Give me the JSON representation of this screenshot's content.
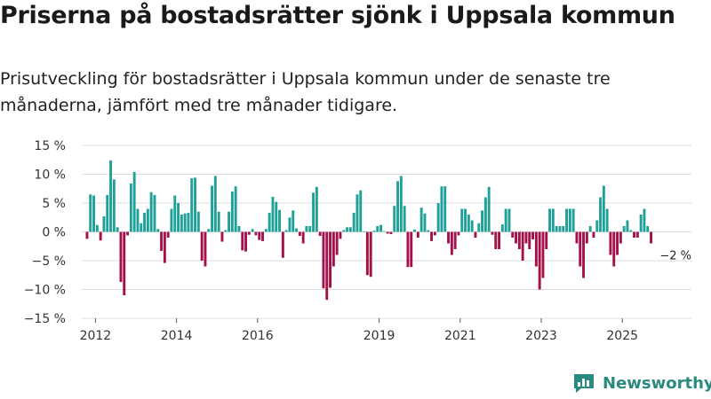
{
  "header": {
    "title": "Priserna på bostadsrätter sjönk i Uppsala kommun",
    "subtitle": "Prisutveckling för bostadsrätter i Uppsala kommun under de senaste tre månaderna, jämfört med tre månader tidigare."
  },
  "brand": {
    "name": "Newsworthy",
    "icon": "newsworthy-logo-icon",
    "color": "#2a8a80"
  },
  "colors": {
    "positive": "#1fa198",
    "negative": "#a3104a",
    "grid": "#dddddd"
  },
  "chart_data": {
    "type": "bar",
    "title": "Prisutveckling för bostadsrätter i Uppsala kommun",
    "xlabel": "",
    "ylabel": "",
    "ylim": [
      -15,
      15
    ],
    "y_ticks": [
      15,
      10,
      5,
      0,
      -5,
      -10,
      -15
    ],
    "y_tick_labels": [
      "15 %",
      "10 %",
      "5 %",
      "0 %",
      "−5 %",
      "−10 %",
      "−15 %"
    ],
    "x_tick_years": [
      2012,
      2014,
      2016,
      2019,
      2021,
      2023,
      2025
    ],
    "x_tick_labels": [
      "2012",
      "2014",
      "2016",
      "2019",
      "2021",
      "2023",
      "2025"
    ],
    "start": {
      "year": 2011,
      "month": 10
    },
    "values": [
      -1.2,
      6.5,
      6.3,
      1.2,
      -1.5,
      2.7,
      6.4,
      12.4,
      9.1,
      0.8,
      -8.7,
      -11.0,
      -0.6,
      8.4,
      10.4,
      4.0,
      1.5,
      3.3,
      4.0,
      6.9,
      6.4,
      0.5,
      -3.3,
      -5.4,
      -1.0,
      4.0,
      6.3,
      5.0,
      3.0,
      3.2,
      3.3,
      9.3,
      9.4,
      3.5,
      -5.0,
      -6.0,
      0.5,
      8.0,
      9.7,
      3.5,
      -1.7,
      0.3,
      3.5,
      7.0,
      7.9,
      1.0,
      -3.2,
      -3.4,
      -0.5,
      0.5,
      -0.6,
      -1.4,
      -1.6,
      0.5,
      3.3,
      6.1,
      5.2,
      3.8,
      -4.5,
      0.3,
      2.5,
      3.7,
      0.6,
      -0.7,
      -2.0,
      1.0,
      1.0,
      6.8,
      7.8,
      -0.7,
      -9.8,
      -11.8,
      -9.7,
      -6.0,
      -4.0,
      -1.2,
      0.3,
      0.8,
      0.8,
      3.3,
      6.5,
      7.2,
      0.1,
      -7.5,
      -7.8,
      0.2,
      1.0,
      1.2,
      0.1,
      -0.3,
      -0.4,
      4.5,
      8.8,
      9.7,
      4.5,
      -6.1,
      -6.1,
      0.4,
      -1.0,
      4.2,
      3.2,
      0.3,
      -1.6,
      -0.6,
      5.0,
      7.9,
      7.9,
      -2.0,
      -4.0,
      -3.0,
      -0.6,
      4.0,
      4.0,
      3.0,
      2.0,
      -1.0,
      1.5,
      3.7,
      6.0,
      7.8,
      -0.5,
      -3.0,
      -3.0,
      1.3,
      4.0,
      4.0,
      -1.0,
      -2.0,
      -3.0,
      -5.0,
      -2.0,
      -3.0,
      -1.3,
      -6.0,
      -10.0,
      -8.0,
      -3.0,
      4.0,
      4.0,
      1.0,
      1.0,
      1.0,
      4.0,
      4.0,
      4.0,
      -2.0,
      -6.0,
      -8.0,
      -2.0,
      1.0,
      -1.0,
      2.0,
      6.0,
      8.0,
      4.0,
      -4.0,
      -6.0,
      -4.0,
      -2.0,
      1.0,
      2.0,
      0.3,
      -1.0,
      -1.0,
      3.0,
      4.0,
      1.0,
      -2.0
    ],
    "last_value_label": "−2 %"
  }
}
